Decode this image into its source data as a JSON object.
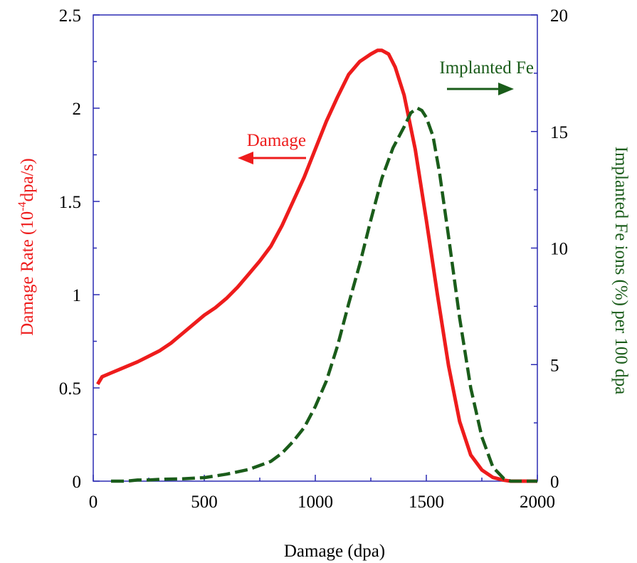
{
  "chart_data": {
    "type": "line",
    "xlabel": "Damage (dpa)",
    "ylabel": {
      "pre": "Damage Rate (10",
      "sup": "-4",
      "post": "dpa/s)"
    },
    "y2label": "Implanted Fe ions (%) per 100 dpa",
    "xlim": [
      0,
      2000
    ],
    "ylim": [
      0,
      2.5
    ],
    "y2lim": [
      0,
      20
    ],
    "xticks": [
      "0",
      "500",
      "1000",
      "1500",
      "2000"
    ],
    "yticks": [
      "0",
      "0.5",
      "1",
      "1.5",
      "2",
      "2.5"
    ],
    "y2ticks": [
      "0",
      "5",
      "10",
      "15",
      "20"
    ],
    "grid": false,
    "colors": {
      "damage": "#ee1c1c",
      "implanted": "#1a5c1a",
      "axes": "#2b2bb3"
    },
    "annotations": {
      "damage": "Damage",
      "implanted": "Implanted Fe"
    },
    "series": [
      {
        "name": "Damage",
        "axis": "left",
        "x": [
          20,
          40,
          80,
          120,
          160,
          200,
          250,
          300,
          350,
          400,
          450,
          500,
          550,
          600,
          650,
          700,
          750,
          800,
          850,
          900,
          950,
          1000,
          1050,
          1100,
          1150,
          1200,
          1250,
          1280,
          1300,
          1330,
          1360,
          1400,
          1450,
          1500,
          1550,
          1600,
          1650,
          1700,
          1750,
          1800,
          1850,
          1880,
          1900,
          1950,
          2000
        ],
        "y": [
          0.52,
          0.56,
          0.58,
          0.6,
          0.62,
          0.64,
          0.67,
          0.7,
          0.74,
          0.79,
          0.84,
          0.89,
          0.93,
          0.98,
          1.04,
          1.11,
          1.18,
          1.26,
          1.37,
          1.5,
          1.63,
          1.78,
          1.93,
          2.06,
          2.18,
          2.25,
          2.29,
          2.31,
          2.31,
          2.29,
          2.22,
          2.07,
          1.78,
          1.4,
          1.0,
          0.62,
          0.32,
          0.14,
          0.06,
          0.02,
          0.005,
          0.0,
          0.0,
          0.0,
          0.0
        ]
      },
      {
        "name": "Implanted Fe",
        "axis": "right",
        "x": [
          80,
          150,
          200,
          250,
          300,
          400,
          500,
          600,
          700,
          800,
          850,
          900,
          950,
          1000,
          1050,
          1100,
          1150,
          1200,
          1250,
          1300,
          1350,
          1400,
          1430,
          1460,
          1480,
          1500,
          1530,
          1560,
          1600,
          1650,
          1700,
          1750,
          1800,
          1850,
          1880,
          1900,
          1950,
          2000
        ],
        "y": [
          0.0,
          0.0,
          0.05,
          0.05,
          0.08,
          0.1,
          0.15,
          0.3,
          0.5,
          0.85,
          1.2,
          1.7,
          2.3,
          3.2,
          4.3,
          5.8,
          7.6,
          9.3,
          11.2,
          13.0,
          14.3,
          15.2,
          15.8,
          16.0,
          15.9,
          15.6,
          14.8,
          13.2,
          10.5,
          7.0,
          4.0,
          1.9,
          0.6,
          0.1,
          0.0,
          0.0,
          0.0,
          0.0
        ]
      }
    ]
  }
}
